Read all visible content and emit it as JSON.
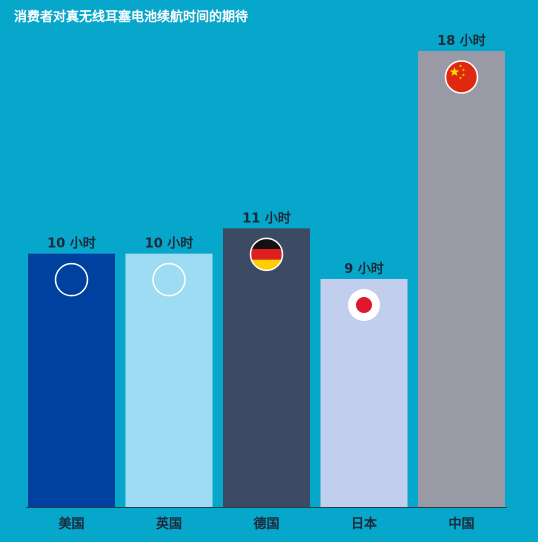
{
  "chart_data": {
    "type": "bar",
    "title": "消费者对真无线耳塞电池续航时间的期待",
    "categories": [
      "美国",
      "英国",
      "德国",
      "日本",
      "中国"
    ],
    "values": [
      10,
      10,
      11,
      9,
      18
    ],
    "value_labels": [
      "10 小时",
      "10 小时",
      "11 小时",
      "9 小时",
      "18 小时"
    ],
    "ylim": [
      0,
      18
    ],
    "grid": false,
    "legend": "none",
    "bar_colors": [
      "#0041a0",
      "#9ddcf2",
      "#3c4b63",
      "#c2ceee",
      "#9a99a6"
    ],
    "icons": [
      "us-flag-icon",
      "uk-flag-icon",
      "germany-flag-icon",
      "japan-flag-icon",
      "china-flag-icon"
    ]
  },
  "colors": {
    "background": "#06a7cb",
    "text_dark": "#1b2a3a",
    "axis": "#2a3d4f"
  }
}
